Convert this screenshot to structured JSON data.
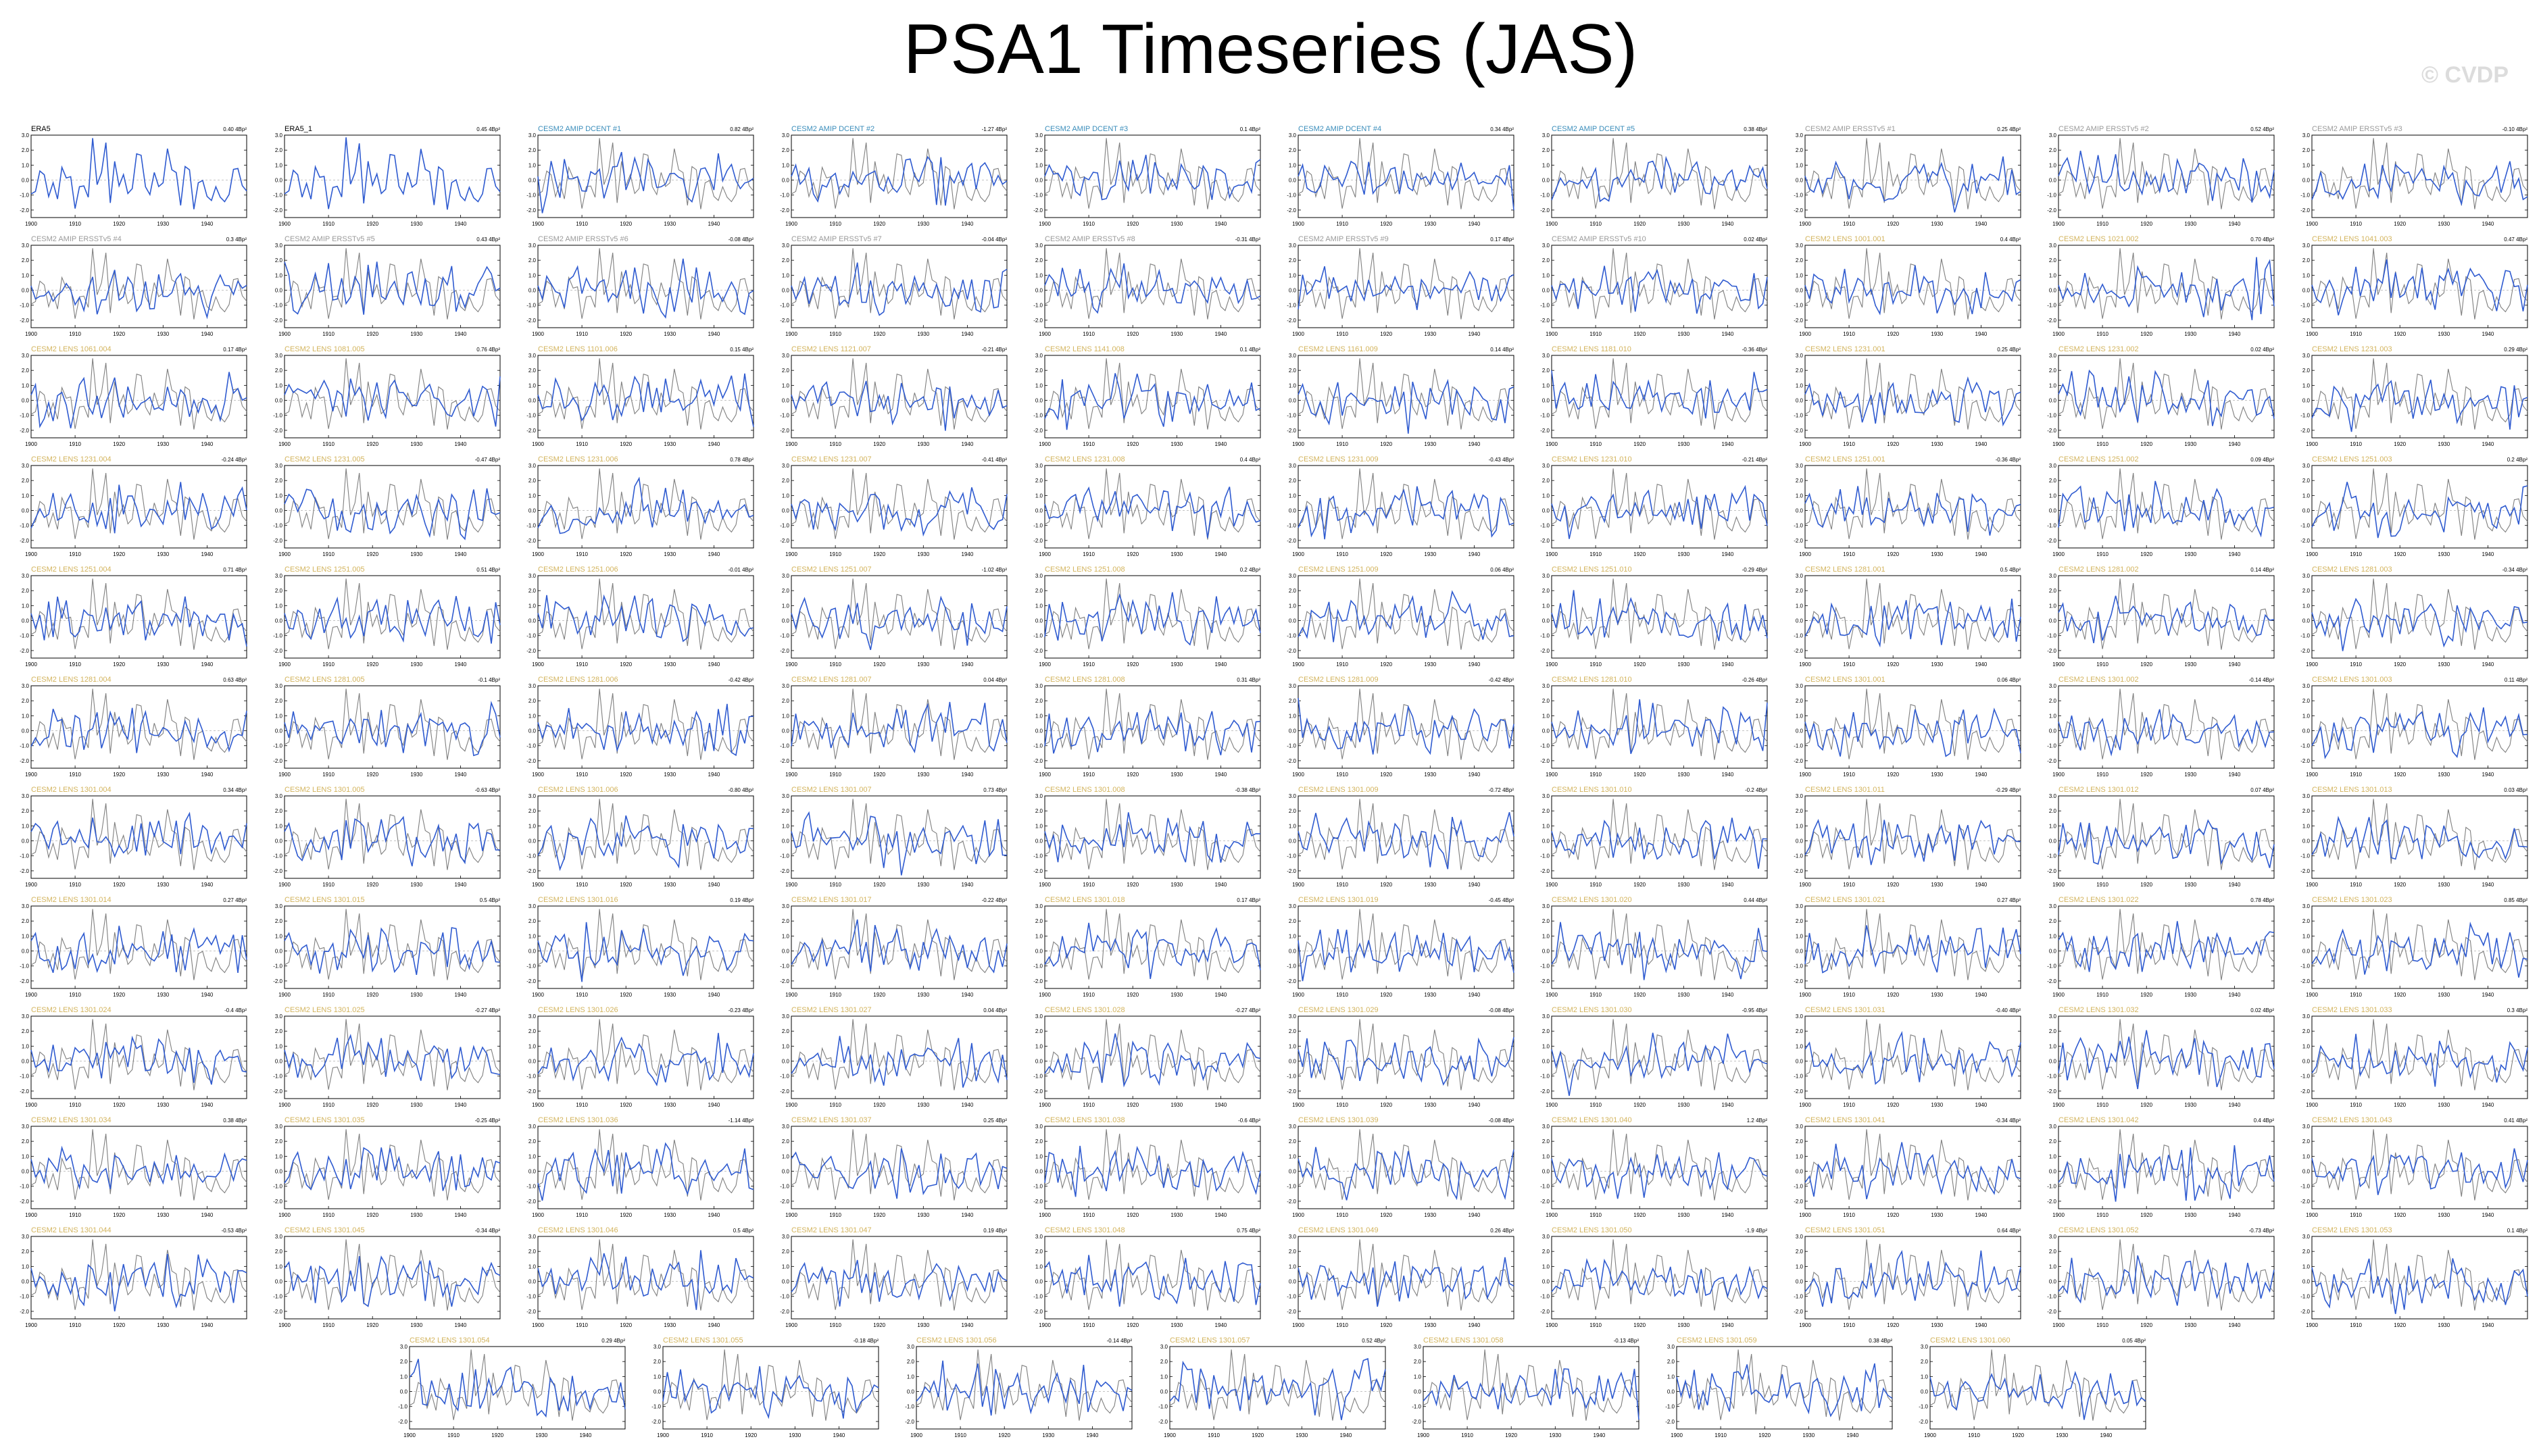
{
  "page": {
    "title": "PSA1 Timeseries (JAS)",
    "watermark": "© CVDP"
  },
  "colors": {
    "model_line": "#2f5bd0",
    "obs_line": "#7f7f7f",
    "obs_title": "#000000",
    "cent_title": "#3a8dbb",
    "erss_title": "#9a9a9a",
    "lens_title": "#d3b45e",
    "axis": "#000000"
  },
  "chart_data": {
    "type": "line",
    "panel_count": 117,
    "columns": 10,
    "xlabel": "",
    "ylabel": "",
    "xlim": [
      1900,
      1949
    ],
    "ylim": [
      -2.5,
      3.0
    ],
    "x_ticks": [
      "1900",
      "1910",
      "1920",
      "1930",
      "1940"
    ],
    "y_ticks": [
      "3.0",
      "2.0",
      "1.0",
      "0.0",
      "-1.0",
      "-2.0"
    ],
    "panels": [
      {
        "title": "ERA5",
        "stat": "0.40 4Bp²",
        "kind": "obs"
      },
      {
        "title": "ERA5_1",
        "stat": "0.45 4Bp²",
        "kind": "obs"
      },
      {
        "title": "CESM2 AMIP DCENT #1",
        "stat": "0.82 4Bp²",
        "kind": "cent"
      },
      {
        "title": "CESM2 AMIP DCENT #2",
        "stat": "-1.27 4Bp²",
        "kind": "cent"
      },
      {
        "title": "CESM2 AMIP DCENT #3",
        "stat": "0.1 4Bp²",
        "kind": "cent"
      },
      {
        "title": "CESM2 AMIP DCENT #4",
        "stat": "0.34 4Bp²",
        "kind": "cent"
      },
      {
        "title": "CESM2 AMIP DCENT #5",
        "stat": "0.38 4Bp²",
        "kind": "cent"
      },
      {
        "title": "CESM2 AMIP ERSSTv5 #1",
        "stat": "0.25 4Bp²",
        "kind": "erss"
      },
      {
        "title": "CESM2 AMIP ERSSTv5 #2",
        "stat": "0.52 4Bp²",
        "kind": "erss"
      },
      {
        "title": "CESM2 AMIP ERSSTv5 #3",
        "stat": "-0.10 4Bp²",
        "kind": "erss"
      },
      {
        "title": "CESM2 AMIP ERSSTv5 #4",
        "stat": "0.3 4Bp²",
        "kind": "erss"
      },
      {
        "title": "CESM2 AMIP ERSSTv5 #5",
        "stat": "0.43 4Bp²",
        "kind": "erss"
      },
      {
        "title": "CESM2 AMIP ERSSTv5 #6",
        "stat": "-0.08 4Bp²",
        "kind": "erss"
      },
      {
        "title": "CESM2 AMIP ERSSTv5 #7",
        "stat": "-0.04 4Bp²",
        "kind": "erss"
      },
      {
        "title": "CESM2 AMIP ERSSTv5 #8",
        "stat": "-0.31 4Bp²",
        "kind": "erss"
      },
      {
        "title": "CESM2 AMIP ERSSTv5 #9",
        "stat": "0.17 4Bp²",
        "kind": "erss"
      },
      {
        "title": "CESM2 AMIP ERSSTv5 #10",
        "stat": "0.02 4Bp²",
        "kind": "erss"
      },
      {
        "title": "CESM2 LENS 1001.001",
        "stat": "0.4 4Bp²",
        "kind": "lens"
      },
      {
        "title": "CESM2 LENS 1021.002",
        "stat": "0.70 4Bp²",
        "kind": "lens"
      },
      {
        "title": "CESM2 LENS 1041.003",
        "stat": "0.47 4Bp²",
        "kind": "lens"
      },
      {
        "title": "CESM2 LENS 1061.004",
        "stat": "0.17 4Bp²",
        "kind": "lens"
      },
      {
        "title": "CESM2 LENS 1081.005",
        "stat": "0.76 4Bp²",
        "kind": "lens"
      },
      {
        "title": "CESM2 LENS 1101.006",
        "stat": "0.15 4Bp²",
        "kind": "lens"
      },
      {
        "title": "CESM2 LENS 1121.007",
        "stat": "-0.21 4Bp²",
        "kind": "lens"
      },
      {
        "title": "CESM2 LENS 1141.008",
        "stat": "0.1 4Bp²",
        "kind": "lens"
      },
      {
        "title": "CESM2 LENS 1161.009",
        "stat": "0.14 4Bp²",
        "kind": "lens"
      },
      {
        "title": "CESM2 LENS 1181.010",
        "stat": "-0.36 4Bp²",
        "kind": "lens"
      },
      {
        "title": "CESM2 LENS 1231.001",
        "stat": "0.25 4Bp²",
        "kind": "lens"
      },
      {
        "title": "CESM2 LENS 1231.002",
        "stat": "0.02 4Bp²",
        "kind": "lens"
      },
      {
        "title": "CESM2 LENS 1231.003",
        "stat": "0.29 4Bp²",
        "kind": "lens"
      },
      {
        "title": "CESM2 LENS 1231.004",
        "stat": "-0.24 4Bp²",
        "kind": "lens"
      },
      {
        "title": "CESM2 LENS 1231.005",
        "stat": "-0.47 4Bp²",
        "kind": "lens"
      },
      {
        "title": "CESM2 LENS 1231.006",
        "stat": "0.78 4Bp²",
        "kind": "lens"
      },
      {
        "title": "CESM2 LENS 1231.007",
        "stat": "-0.41 4Bp²",
        "kind": "lens"
      },
      {
        "title": "CESM2 LENS 1231.008",
        "stat": "0.4 4Bp²",
        "kind": "lens"
      },
      {
        "title": "CESM2 LENS 1231.009",
        "stat": "-0.43 4Bp²",
        "kind": "lens"
      },
      {
        "title": "CESM2 LENS 1231.010",
        "stat": "-0.21 4Bp²",
        "kind": "lens"
      },
      {
        "title": "CESM2 LENS 1251.001",
        "stat": "-0.36 4Bp²",
        "kind": "lens"
      },
      {
        "title": "CESM2 LENS 1251.002",
        "stat": "0.09 4Bp²",
        "kind": "lens"
      },
      {
        "title": "CESM2 LENS 1251.003",
        "stat": "0.2 4Bp²",
        "kind": "lens"
      },
      {
        "title": "CESM2 LENS 1251.004",
        "stat": "0.71 4Bp²",
        "kind": "lens"
      },
      {
        "title": "CESM2 LENS 1251.005",
        "stat": "0.51 4Bp²",
        "kind": "lens"
      },
      {
        "title": "CESM2 LENS 1251.006",
        "stat": "-0.01 4Bp²",
        "kind": "lens"
      },
      {
        "title": "CESM2 LENS 1251.007",
        "stat": "-1.02 4Bp²",
        "kind": "lens"
      },
      {
        "title": "CESM2 LENS 1251.008",
        "stat": "0.2 4Bp²",
        "kind": "lens"
      },
      {
        "title": "CESM2 LENS 1251.009",
        "stat": "0.06 4Bp²",
        "kind": "lens"
      },
      {
        "title": "CESM2 LENS 1251.010",
        "stat": "-0.29 4Bp²",
        "kind": "lens"
      },
      {
        "title": "CESM2 LENS 1281.001",
        "stat": "0.5 4Bp²",
        "kind": "lens"
      },
      {
        "title": "CESM2 LENS 1281.002",
        "stat": "0.14 4Bp²",
        "kind": "lens"
      },
      {
        "title": "CESM2 LENS 1281.003",
        "stat": "-0.34 4Bp²",
        "kind": "lens"
      },
      {
        "title": "CESM2 LENS 1281.004",
        "stat": "0.63 4Bp²",
        "kind": "lens"
      },
      {
        "title": "CESM2 LENS 1281.005",
        "stat": "-0.1 4Bp²",
        "kind": "lens"
      },
      {
        "title": "CESM2 LENS 1281.006",
        "stat": "-0.42 4Bp²",
        "kind": "lens"
      },
      {
        "title": "CESM2 LENS 1281.007",
        "stat": "0.04 4Bp²",
        "kind": "lens"
      },
      {
        "title": "CESM2 LENS 1281.008",
        "stat": "0.31 4Bp²",
        "kind": "lens"
      },
      {
        "title": "CESM2 LENS 1281.009",
        "stat": "-0.42 4Bp²",
        "kind": "lens"
      },
      {
        "title": "CESM2 LENS 1281.010",
        "stat": "-0.26 4Bp²",
        "kind": "lens"
      },
      {
        "title": "CESM2 LENS 1301.001",
        "stat": "0.06 4Bp²",
        "kind": "lens"
      },
      {
        "title": "CESM2 LENS 1301.002",
        "stat": "-0.14 4Bp²",
        "kind": "lens"
      },
      {
        "title": "CESM2 LENS 1301.003",
        "stat": "0.11 4Bp²",
        "kind": "lens"
      },
      {
        "title": "CESM2 LENS 1301.004",
        "stat": "0.34 4Bp²",
        "kind": "lens"
      },
      {
        "title": "CESM2 LENS 1301.005",
        "stat": "-0.63 4Bp²",
        "kind": "lens"
      },
      {
        "title": "CESM2 LENS 1301.006",
        "stat": "-0.80 4Bp²",
        "kind": "lens"
      },
      {
        "title": "CESM2 LENS 1301.007",
        "stat": "0.73 4Bp²",
        "kind": "lens"
      },
      {
        "title": "CESM2 LENS 1301.008",
        "stat": "-0.38 4Bp²",
        "kind": "lens"
      },
      {
        "title": "CESM2 LENS 1301.009",
        "stat": "-0.72 4Bp²",
        "kind": "lens"
      },
      {
        "title": "CESM2 LENS 1301.010",
        "stat": "-0.2 4Bp²",
        "kind": "lens"
      },
      {
        "title": "CESM2 LENS 1301.011",
        "stat": "-0.29 4Bp²",
        "kind": "lens"
      },
      {
        "title": "CESM2 LENS 1301.012",
        "stat": "0.07 4Bp²",
        "kind": "lens"
      },
      {
        "title": "CESM2 LENS 1301.013",
        "stat": "0.03 4Bp²",
        "kind": "lens"
      },
      {
        "title": "CESM2 LENS 1301.014",
        "stat": "0.27 4Bp²",
        "kind": "lens"
      },
      {
        "title": "CESM2 LENS 1301.015",
        "stat": "0.5 4Bp²",
        "kind": "lens"
      },
      {
        "title": "CESM2 LENS 1301.016",
        "stat": "0.19 4Bp²",
        "kind": "lens"
      },
      {
        "title": "CESM2 LENS 1301.017",
        "stat": "-0.22 4Bp²",
        "kind": "lens"
      },
      {
        "title": "CESM2 LENS 1301.018",
        "stat": "0.17 4Bp²",
        "kind": "lens"
      },
      {
        "title": "CESM2 LENS 1301.019",
        "stat": "-0.45 4Bp²",
        "kind": "lens"
      },
      {
        "title": "CESM2 LENS 1301.020",
        "stat": "0.44 4Bp²",
        "kind": "lens"
      },
      {
        "title": "CESM2 LENS 1301.021",
        "stat": "0.27 4Bp²",
        "kind": "lens"
      },
      {
        "title": "CESM2 LENS 1301.022",
        "stat": "0.78 4Bp²",
        "kind": "lens"
      },
      {
        "title": "CESM2 LENS 1301.023",
        "stat": "0.85 4Bp²",
        "kind": "lens"
      },
      {
        "title": "CESM2 LENS 1301.024",
        "stat": "-0.4 4Bp²",
        "kind": "lens"
      },
      {
        "title": "CESM2 LENS 1301.025",
        "stat": "-0.27 4Bp²",
        "kind": "lens"
      },
      {
        "title": "CESM2 LENS 1301.026",
        "stat": "-0.23 4Bp²",
        "kind": "lens"
      },
      {
        "title": "CESM2 LENS 1301.027",
        "stat": "0.04 4Bp²",
        "kind": "lens"
      },
      {
        "title": "CESM2 LENS 1301.028",
        "stat": "-0.27 4Bp²",
        "kind": "lens"
      },
      {
        "title": "CESM2 LENS 1301.029",
        "stat": "-0.08 4Bp²",
        "kind": "lens"
      },
      {
        "title": "CESM2 LENS 1301.030",
        "stat": "-0.95 4Bp²",
        "kind": "lens"
      },
      {
        "title": "CESM2 LENS 1301.031",
        "stat": "-0.40 4Bp²",
        "kind": "lens"
      },
      {
        "title": "CESM2 LENS 1301.032",
        "stat": "0.02 4Bp²",
        "kind": "lens"
      },
      {
        "title": "CESM2 LENS 1301.033",
        "stat": "0.3 4Bp²",
        "kind": "lens"
      },
      {
        "title": "CESM2 LENS 1301.034",
        "stat": "0.38 4Bp²",
        "kind": "lens"
      },
      {
        "title": "CESM2 LENS 1301.035",
        "stat": "-0.25 4Bp²",
        "kind": "lens"
      },
      {
        "title": "CESM2 LENS 1301.036",
        "stat": "-1.14 4Bp²",
        "kind": "lens"
      },
      {
        "title": "CESM2 LENS 1301.037",
        "stat": "0.25 4Bp²",
        "kind": "lens"
      },
      {
        "title": "CESM2 LENS 1301.038",
        "stat": "-0.6 4Bp²",
        "kind": "lens"
      },
      {
        "title": "CESM2 LENS 1301.039",
        "stat": "-0.08 4Bp²",
        "kind": "lens"
      },
      {
        "title": "CESM2 LENS 1301.040",
        "stat": "1.2 4Bp²",
        "kind": "lens"
      },
      {
        "title": "CESM2 LENS 1301.041",
        "stat": "-0.34 4Bp²",
        "kind": "lens"
      },
      {
        "title": "CESM2 LENS 1301.042",
        "stat": "0.4 4Bp²",
        "kind": "lens"
      },
      {
        "title": "CESM2 LENS 1301.043",
        "stat": "0.41 4Bp²",
        "kind": "lens"
      },
      {
        "title": "CESM2 LENS 1301.044",
        "stat": "-0.53 4Bp²",
        "kind": "lens"
      },
      {
        "title": "CESM2 LENS 1301.045",
        "stat": "-0.34 4Bp²",
        "kind": "lens"
      },
      {
        "title": "CESM2 LENS 1301.046",
        "stat": "0.5 4Bp²",
        "kind": "lens"
      },
      {
        "title": "CESM2 LENS 1301.047",
        "stat": "0.19 4Bp²",
        "kind": "lens"
      },
      {
        "title": "CESM2 LENS 1301.048",
        "stat": "0.75 4Bp²",
        "kind": "lens"
      },
      {
        "title": "CESM2 LENS 1301.049",
        "stat": "0.26 4Bp²",
        "kind": "lens"
      },
      {
        "title": "CESM2 LENS 1301.050",
        "stat": "-1.9 4Bp²",
        "kind": "lens"
      },
      {
        "title": "CESM2 LENS 1301.051",
        "stat": "0.64 4Bp²",
        "kind": "lens"
      },
      {
        "title": "CESM2 LENS 1301.052",
        "stat": "-0.73 4Bp²",
        "kind": "lens"
      },
      {
        "title": "CESM2 LENS 1301.053",
        "stat": "0.1 4Bp²",
        "kind": "lens"
      },
      {
        "title": "CESM2 LENS 1301.054",
        "stat": "0.29 4Bp²",
        "kind": "lens"
      },
      {
        "title": "CESM2 LENS 1301.055",
        "stat": "-0.18 4Bp²",
        "kind": "lens"
      },
      {
        "title": "CESM2 LENS 1301.056",
        "stat": "-0.14 4Bp²",
        "kind": "lens"
      },
      {
        "title": "CESM2 LENS 1301.057",
        "stat": "0.52 4Bp²",
        "kind": "lens"
      },
      {
        "title": "CESM2 LENS 1301.058",
        "stat": "-0.13 4Bp²",
        "kind": "lens"
      },
      {
        "title": "CESM2 LENS 1301.059",
        "stat": "0.38 4Bp²",
        "kind": "lens"
      },
      {
        "title": "CESM2 LENS 1301.060",
        "stat": "0.05 4Bp²",
        "kind": "lens"
      }
    ]
  }
}
